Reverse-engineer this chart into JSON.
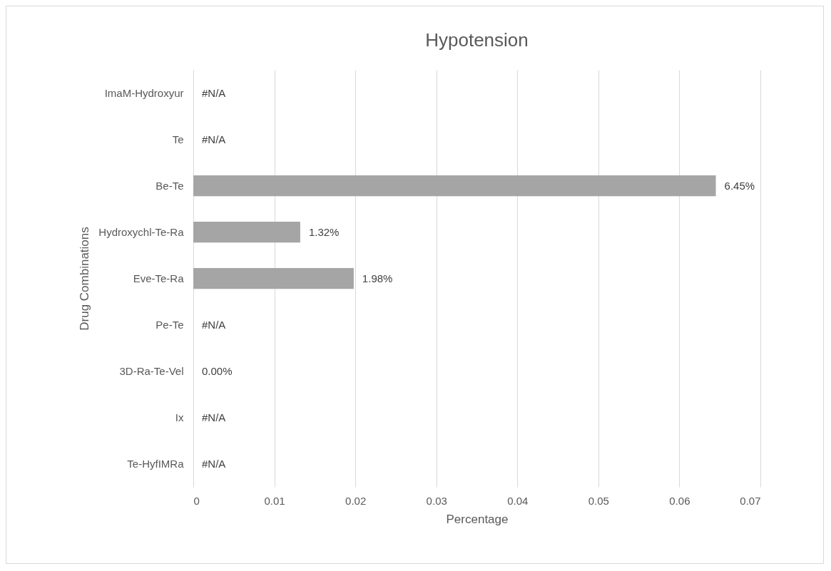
{
  "chart_data": {
    "type": "bar",
    "orientation": "horizontal",
    "title": "Hypotension",
    "xlabel": "Percentage",
    "ylabel": "Drug Combinations",
    "categories": [
      "ImaM-Hydroxyur",
      "Te",
      "Be-Te",
      "Hydroxychl-Te-Ra",
      "Eve-Te-Ra",
      "Pe-Te",
      "3D-Ra-Te-Vel",
      "Ix",
      "Te-HyfIMRa"
    ],
    "values": [
      null,
      null,
      0.0645,
      0.0132,
      0.0198,
      null,
      0,
      null,
      null
    ],
    "value_labels": [
      "#N/A",
      "#N/A",
      "6.45%",
      "1.32%",
      "1.98%",
      "#N/A",
      "0.00%",
      "#N/A",
      "#N/A"
    ],
    "color": "#a5a5a5",
    "xlim": [
      0,
      0.07
    ],
    "xticks": [
      0,
      0.01,
      0.02,
      0.03,
      0.04,
      0.05,
      0.06,
      0.07
    ],
    "grid": "x"
  }
}
